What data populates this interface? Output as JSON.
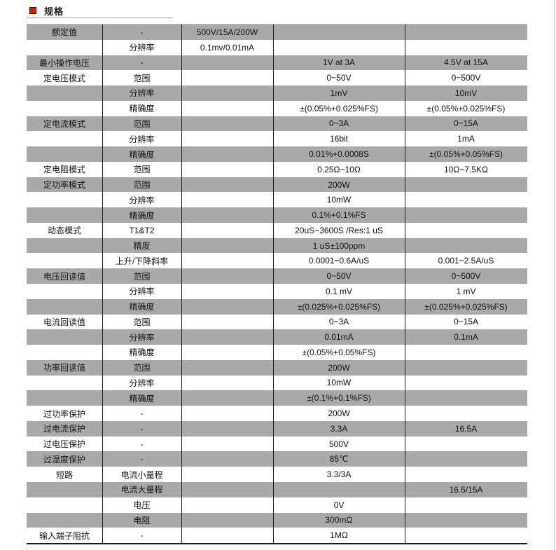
{
  "header": {
    "title": "规格",
    "bullet_color": "#cc2200"
  },
  "colors": {
    "row_gray": "#a9a9a9",
    "row_white": "#ffffff",
    "grid_line": "#1c1c1c"
  },
  "table": {
    "rows": [
      {
        "cells": [
          "额定值",
          "-",
          "500V/15A/200W",
          "",
          ""
        ]
      },
      {
        "cells": [
          "",
          "分辨率",
          "0.1mv/0.01mA",
          "",
          ""
        ]
      },
      {
        "cells": [
          "最小操作电压",
          "-",
          "",
          "1V at 3A",
          "4.5V at 15A"
        ]
      },
      {
        "cells": [
          "定电压模式",
          "范围",
          "",
          "0~50V",
          "0~500V"
        ]
      },
      {
        "cells": [
          "",
          "分辨率",
          "",
          "1mV",
          "10mV"
        ]
      },
      {
        "cells": [
          "",
          "精确度",
          "",
          "±(0.05%+0.025%FS)",
          "±(0.05%+0.025%FS)"
        ]
      },
      {
        "cells": [
          "定电流模式",
          "范围",
          "",
          "0~3A",
          "0~15A"
        ]
      },
      {
        "cells": [
          "",
          "分辨率",
          "",
          "16bit",
          "1mA"
        ]
      },
      {
        "cells": [
          "",
          "精确度",
          "",
          "0.01%+0.0008S",
          "±(0.05%+0.05%FS)"
        ]
      },
      {
        "cells": [
          "定电阻模式",
          "范围",
          "",
          "0.25Ω~10Ω",
          "10Ω~7.5KΩ"
        ]
      },
      {
        "cells": [
          "定功率模式",
          "范围",
          "",
          "200W",
          ""
        ]
      },
      {
        "cells": [
          "",
          "分辨率",
          "",
          "10mW",
          ""
        ]
      },
      {
        "cells": [
          "",
          "精确度",
          "",
          "0.1%+0.1%FS",
          ""
        ]
      },
      {
        "cells": [
          "动态模式",
          "T1&T2",
          "",
          "20uS~3600S /Res:1 uS",
          ""
        ]
      },
      {
        "cells": [
          "",
          "精度",
          "",
          "1 uS±100ppm",
          ""
        ]
      },
      {
        "cells": [
          "",
          "上升/下降斜率",
          "",
          "0.0001~0.6A/uS",
          "0.001~2.5A/uS"
        ]
      },
      {
        "cells": [
          "电压回读值",
          "范围",
          "",
          "0~50V",
          "0~500V"
        ]
      },
      {
        "cells": [
          "",
          "分辨率",
          "",
          "0.1 mV",
          "1 mV"
        ]
      },
      {
        "cells": [
          "",
          "精确度",
          "",
          "±(0.025%+0.025%FS)",
          "±(0.025%+0.025%FS)"
        ]
      },
      {
        "cells": [
          "电流回读值",
          "范围",
          "",
          "0~3A",
          "0~15A"
        ]
      },
      {
        "cells": [
          "",
          "分辨率",
          "",
          "0.01mA",
          "0.1mA"
        ]
      },
      {
        "cells": [
          "",
          "精确度",
          "",
          "±(0.05%+0.05%FS)",
          ""
        ]
      },
      {
        "cells": [
          "功率回读值",
          "范围",
          "",
          "200W",
          ""
        ]
      },
      {
        "cells": [
          "",
          "分辨率",
          "",
          "10mW",
          ""
        ]
      },
      {
        "cells": [
          "",
          "精确度",
          "",
          "±(0.1%+0.1%FS)",
          ""
        ]
      },
      {
        "cells": [
          "过功率保护",
          "-",
          "",
          "200W",
          ""
        ]
      },
      {
        "cells": [
          "过电流保护",
          "-",
          "",
          "3.3A",
          "16.5A"
        ]
      },
      {
        "cells": [
          "过电压保护",
          "-",
          "",
          "500V",
          ""
        ]
      },
      {
        "cells": [
          "过温度保护",
          "-",
          "",
          "85℃",
          ""
        ]
      },
      {
        "cells": [
          "短路",
          "电流小量程",
          "",
          "3.3/3A",
          ""
        ]
      },
      {
        "cells": [
          "",
          "电流大量程",
          "",
          "",
          "16.5/15A"
        ]
      },
      {
        "cells": [
          "",
          "电压",
          "",
          "0V",
          ""
        ]
      },
      {
        "cells": [
          "",
          "电阻",
          "",
          "300mΩ",
          ""
        ]
      },
      {
        "cells": [
          "输入端子阻抗",
          "-",
          "",
          "1MΩ",
          ""
        ]
      }
    ]
  }
}
